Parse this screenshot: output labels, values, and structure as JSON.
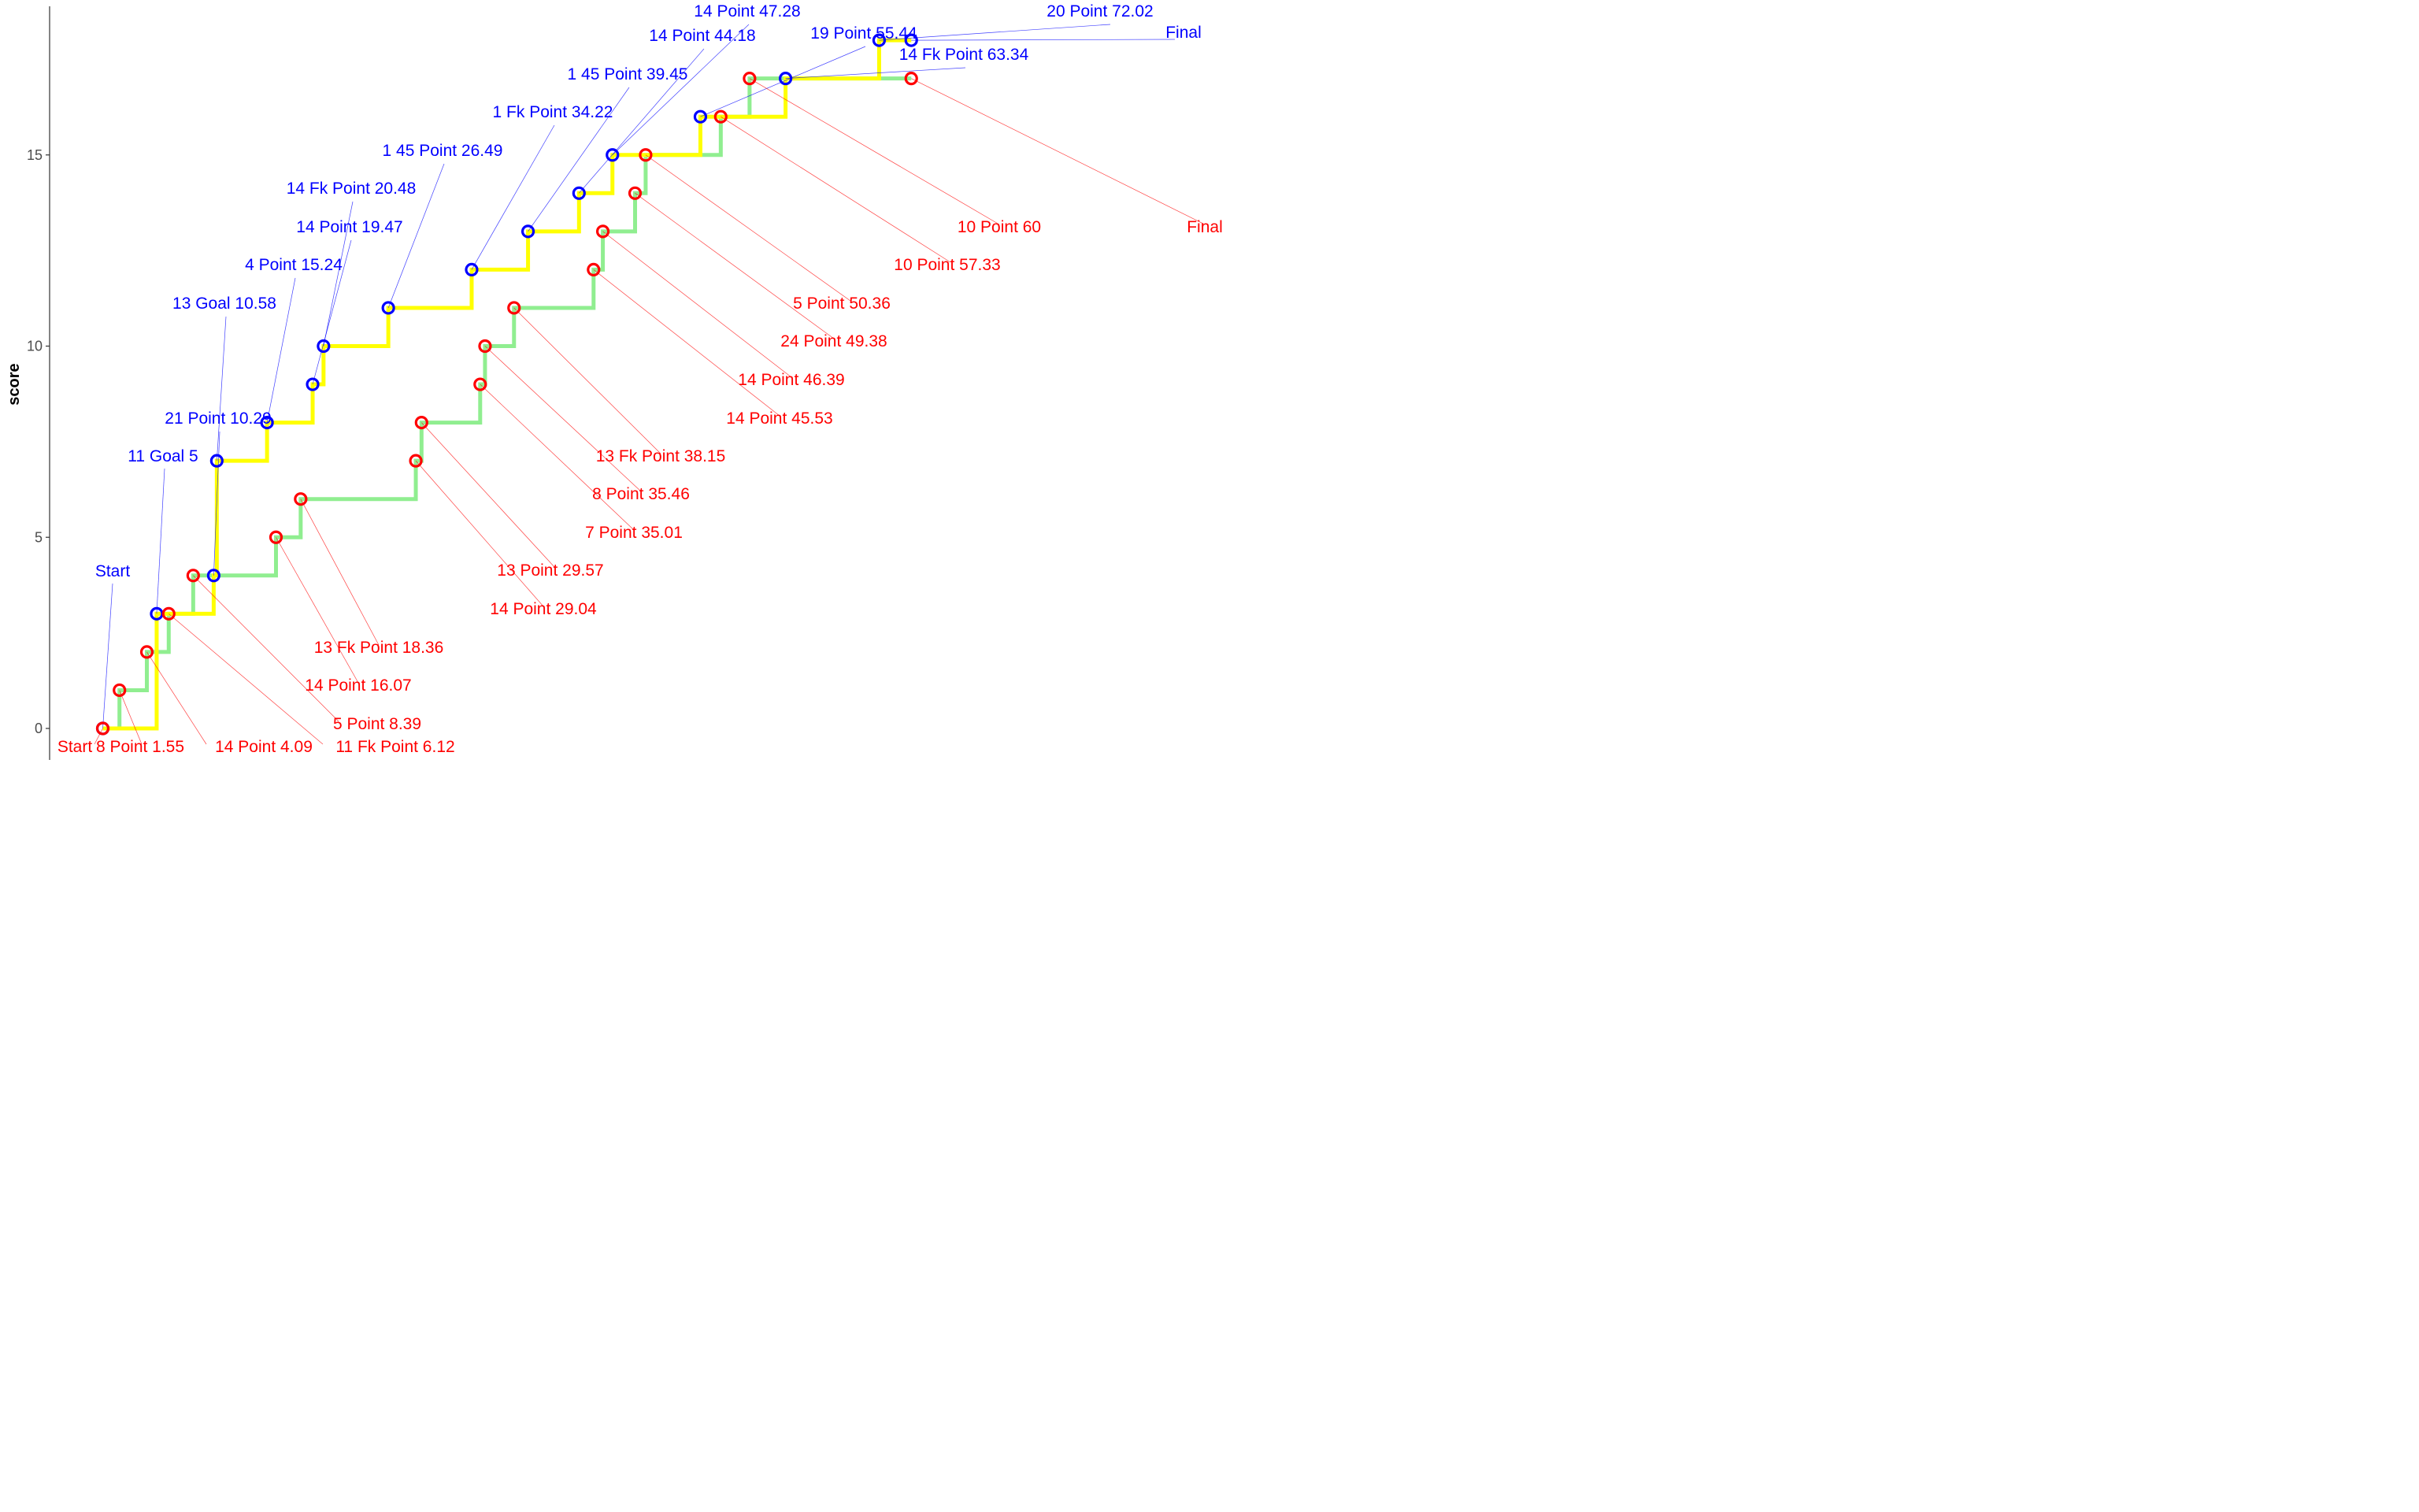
{
  "chart_data": {
    "type": "line",
    "step": true,
    "title": "",
    "xlabel": "",
    "ylabel": "score",
    "xlim": [
      -3,
      76
    ],
    "ylim": [
      -0.8,
      18.7
    ],
    "yticks": [
      0,
      5,
      10,
      15
    ],
    "grid": false,
    "legend": "none",
    "series": [
      {
        "color": "#ffff00",
        "marker_color": "#0000ff",
        "label_color": "#0000ff",
        "points": [
          {
            "x": 0,
            "y": 0,
            "label": "Start"
          },
          {
            "x": 5,
            "y": 3,
            "label": "11 Goal 5"
          },
          {
            "x": 10.29,
            "y": 4,
            "label": "21 Point 10.29"
          },
          {
            "x": 10.58,
            "y": 7,
            "label": "13 Goal 10.58"
          },
          {
            "x": 15.24,
            "y": 8,
            "label": "4 Point 15.24"
          },
          {
            "x": 19.47,
            "y": 9,
            "label": "14 Point 19.47"
          },
          {
            "x": 20.48,
            "y": 10,
            "label": "14 Fk Point 20.48"
          },
          {
            "x": 26.49,
            "y": 11,
            "label": "1 45 Point 26.49"
          },
          {
            "x": 34.22,
            "y": 12,
            "label": "1 Fk Point 34.22"
          },
          {
            "x": 39.45,
            "y": 13,
            "label": "1 45 Point 39.45"
          },
          {
            "x": 44.18,
            "y": 14,
            "label": "14 Point 44.18"
          },
          {
            "x": 47.28,
            "y": 15,
            "label": "14 Point 47.28"
          },
          {
            "x": 55.44,
            "y": 16,
            "label": "19 Point 55.44"
          },
          {
            "x": 63.34,
            "y": 17,
            "label": "14 Fk Point 63.34"
          },
          {
            "x": 72.02,
            "y": 18,
            "label": "20 Point 72.02"
          },
          {
            "x": 75,
            "y": 18,
            "label": "Final"
          }
        ]
      },
      {
        "color": "#90ee90",
        "marker_color": "#ff0000",
        "label_color": "#ff0000",
        "points": [
          {
            "x": 0,
            "y": 0,
            "label": "Start"
          },
          {
            "x": 1.55,
            "y": 1,
            "label": "8 Point 1.55"
          },
          {
            "x": 4.09,
            "y": 2,
            "label": "14 Point 4.09"
          },
          {
            "x": 6.12,
            "y": 3,
            "label": "11 Fk Point 6.12"
          },
          {
            "x": 8.39,
            "y": 4,
            "label": "5 Point 8.39"
          },
          {
            "x": 16.07,
            "y": 5,
            "label": "14 Point 16.07"
          },
          {
            "x": 18.36,
            "y": 6,
            "label": "13 Fk Point 18.36"
          },
          {
            "x": 29.04,
            "y": 7,
            "label": "14 Point 29.04"
          },
          {
            "x": 29.57,
            "y": 8,
            "label": "13 Point 29.57"
          },
          {
            "x": 35.01,
            "y": 9,
            "label": "7 Point 35.01"
          },
          {
            "x": 35.46,
            "y": 10,
            "label": "8 Point 35.46"
          },
          {
            "x": 38.15,
            "y": 11,
            "label": "13 Fk Point 38.15"
          },
          {
            "x": 45.53,
            "y": 12,
            "label": "14 Point 45.53"
          },
          {
            "x": 46.39,
            "y": 13,
            "label": "14 Point 46.39"
          },
          {
            "x": 49.38,
            "y": 14,
            "label": "24 Point 49.38"
          },
          {
            "x": 50.36,
            "y": 15,
            "label": "5 Point 50.36"
          },
          {
            "x": 57.33,
            "y": 16,
            "label": "10 Point 57.33"
          },
          {
            "x": 60,
            "y": 17,
            "label": "10 Point 60"
          },
          {
            "x": 75,
            "y": 17,
            "label": "Final"
          }
        ]
      }
    ]
  }
}
